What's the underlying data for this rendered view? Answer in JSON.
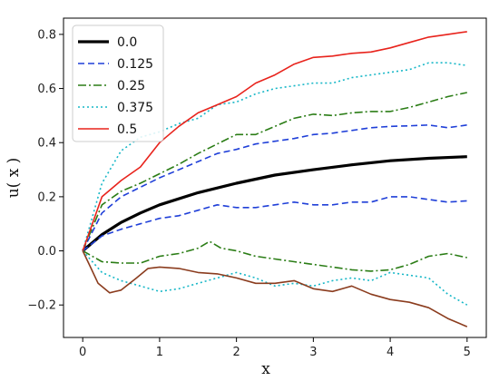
{
  "chart_data": {
    "type": "line",
    "xlabel": "x",
    "ylabel": "u( x )",
    "xlim": [
      -0.25,
      5.25
    ],
    "ylim": [
      -0.32,
      0.86
    ],
    "xticks": [
      0,
      1,
      2,
      3,
      4,
      5
    ],
    "yticks": [
      -0.2,
      0.0,
      0.2,
      0.4,
      0.6,
      0.8
    ],
    "xtick_labels": [
      "0",
      "1",
      "2",
      "3",
      "4",
      "5"
    ],
    "ytick_labels": [
      "−0.2",
      "0.0",
      "0.2",
      "0.4",
      "0.6",
      "0.8"
    ],
    "grid": false,
    "legend_placement": "top-left",
    "series": [
      {
        "name": "0.0",
        "color": "#000000",
        "style": "solid",
        "width": "thick",
        "x": [
          0,
          0.25,
          0.5,
          0.75,
          1,
          1.5,
          2,
          2.5,
          3,
          3.5,
          4,
          4.5,
          5
        ],
        "y": [
          0,
          0.06,
          0.105,
          0.14,
          0.17,
          0.215,
          0.25,
          0.28,
          0.3,
          0.318,
          0.333,
          0.342,
          0.348
        ]
      },
      {
        "name": "0.125",
        "color": "#1f3fd8",
        "style": "dashed",
        "width": "normal",
        "x": [
          0,
          0.25,
          0.5,
          0.75,
          1,
          1.25,
          1.5,
          1.75,
          2,
          2.25,
          2.5,
          2.75,
          3,
          3.25,
          3.5,
          3.75,
          4,
          4.25,
          4.5,
          4.75,
          5
        ],
        "y": [
          0,
          0.14,
          0.2,
          0.235,
          0.27,
          0.3,
          0.33,
          0.36,
          0.375,
          0.395,
          0.405,
          0.415,
          0.43,
          0.435,
          0.445,
          0.455,
          0.46,
          0.462,
          0.465,
          0.455,
          0.465
        ]
      },
      {
        "name": "0.125",
        "color": "#1f3fd8",
        "style": "dashed",
        "width": "normal",
        "x": [
          0,
          0.25,
          0.5,
          0.75,
          1,
          1.25,
          1.5,
          1.75,
          2,
          2.25,
          2.5,
          2.75,
          3,
          3.25,
          3.5,
          3.75,
          4,
          4.25,
          4.5,
          4.75,
          5
        ],
        "y": [
          0,
          0.055,
          0.08,
          0.1,
          0.12,
          0.13,
          0.15,
          0.17,
          0.16,
          0.16,
          0.17,
          0.18,
          0.17,
          0.17,
          0.18,
          0.18,
          0.2,
          0.2,
          0.19,
          0.18,
          0.185
        ]
      },
      {
        "name": "0.25",
        "color": "#2b7d16",
        "style": "dashdot",
        "width": "normal",
        "x": [
          0,
          0.25,
          0.5,
          0.75,
          1,
          1.25,
          1.5,
          1.75,
          2,
          2.25,
          2.5,
          2.75,
          3,
          3.25,
          3.5,
          3.75,
          4,
          4.25,
          4.5,
          4.75,
          5
        ],
        "y": [
          0,
          0.17,
          0.22,
          0.25,
          0.285,
          0.32,
          0.36,
          0.395,
          0.43,
          0.43,
          0.46,
          0.49,
          0.505,
          0.5,
          0.51,
          0.515,
          0.515,
          0.53,
          0.55,
          0.57,
          0.585
        ]
      },
      {
        "name": "0.25",
        "color": "#2b7d16",
        "style": "dashdot",
        "width": "normal",
        "x": [
          0,
          0.25,
          0.5,
          0.75,
          1,
          1.25,
          1.5,
          1.65,
          1.8,
          2,
          2.25,
          2.5,
          2.75,
          3,
          3.25,
          3.5,
          3.75,
          4,
          4.25,
          4.5,
          4.75,
          5
        ],
        "y": [
          0,
          -0.04,
          -0.045,
          -0.045,
          -0.02,
          -0.01,
          0.01,
          0.035,
          0.01,
          0.0,
          -0.02,
          -0.03,
          -0.04,
          -0.05,
          -0.06,
          -0.07,
          -0.075,
          -0.07,
          -0.05,
          -0.02,
          -0.01,
          -0.025
        ]
      },
      {
        "name": "0.375",
        "color": "#17b7c7",
        "style": "dotted",
        "width": "normal",
        "x": [
          0,
          0.25,
          0.5,
          0.75,
          1,
          1.25,
          1.5,
          1.75,
          2,
          2.25,
          2.5,
          2.75,
          3,
          3.25,
          3.5,
          3.75,
          4,
          4.25,
          4.5,
          4.75,
          5
        ],
        "y": [
          0,
          0.25,
          0.37,
          0.42,
          0.44,
          0.47,
          0.49,
          0.54,
          0.55,
          0.58,
          0.6,
          0.61,
          0.62,
          0.62,
          0.64,
          0.65,
          0.66,
          0.67,
          0.695,
          0.695,
          0.685
        ]
      },
      {
        "name": "0.375",
        "color": "#17b7c7",
        "style": "dotted",
        "width": "normal",
        "x": [
          0,
          0.25,
          0.5,
          0.75,
          1,
          1.25,
          1.5,
          1.75,
          2,
          2.25,
          2.5,
          2.75,
          3,
          3.25,
          3.5,
          3.75,
          4,
          4.25,
          4.5,
          4.75,
          5
        ],
        "y": [
          0,
          -0.08,
          -0.11,
          -0.13,
          -0.15,
          -0.14,
          -0.12,
          -0.1,
          -0.08,
          -0.1,
          -0.13,
          -0.12,
          -0.13,
          -0.11,
          -0.1,
          -0.11,
          -0.08,
          -0.09,
          -0.1,
          -0.16,
          -0.2
        ]
      },
      {
        "name": "0.5",
        "color": "#e8231c",
        "style": "solid",
        "width": "normal",
        "x": [
          0,
          0.25,
          0.5,
          0.75,
          1,
          1.25,
          1.5,
          1.75,
          2,
          2.25,
          2.5,
          2.75,
          3,
          3.25,
          3.5,
          3.75,
          4,
          4.25,
          4.5,
          4.75,
          5
        ],
        "y": [
          0,
          0.2,
          0.26,
          0.31,
          0.4,
          0.46,
          0.51,
          0.54,
          0.57,
          0.62,
          0.65,
          0.69,
          0.715,
          0.72,
          0.73,
          0.735,
          0.75,
          0.77,
          0.79,
          0.8,
          0.81
        ]
      },
      {
        "name": "0.5",
        "color": "#8b3c1e",
        "style": "solid",
        "width": "normal",
        "x": [
          0,
          0.1,
          0.2,
          0.35,
          0.5,
          0.7,
          0.85,
          1,
          1.25,
          1.5,
          1.75,
          2,
          2.25,
          2.5,
          2.75,
          3,
          3.25,
          3.5,
          3.75,
          4,
          4.25,
          4.5,
          4.75,
          5
        ],
        "y": [
          0,
          -0.06,
          -0.12,
          -0.155,
          -0.145,
          -0.1,
          -0.065,
          -0.06,
          -0.065,
          -0.08,
          -0.085,
          -0.1,
          -0.12,
          -0.12,
          -0.11,
          -0.14,
          -0.15,
          -0.13,
          -0.16,
          -0.18,
          -0.19,
          -0.21,
          -0.25,
          -0.28
        ]
      }
    ],
    "legend": [
      {
        "label": "0.0",
        "color": "#000000",
        "style": "solid",
        "width": "thick"
      },
      {
        "label": "0.125",
        "color": "#1f3fd8",
        "style": "dashed",
        "width": "normal"
      },
      {
        "label": "0.25",
        "color": "#2b7d16",
        "style": "dashdot",
        "width": "normal"
      },
      {
        "label": "0.375",
        "color": "#17b7c7",
        "style": "dotted",
        "width": "normal"
      },
      {
        "label": "0.5",
        "color": "#e8231c",
        "style": "solid",
        "width": "normal"
      }
    ]
  }
}
